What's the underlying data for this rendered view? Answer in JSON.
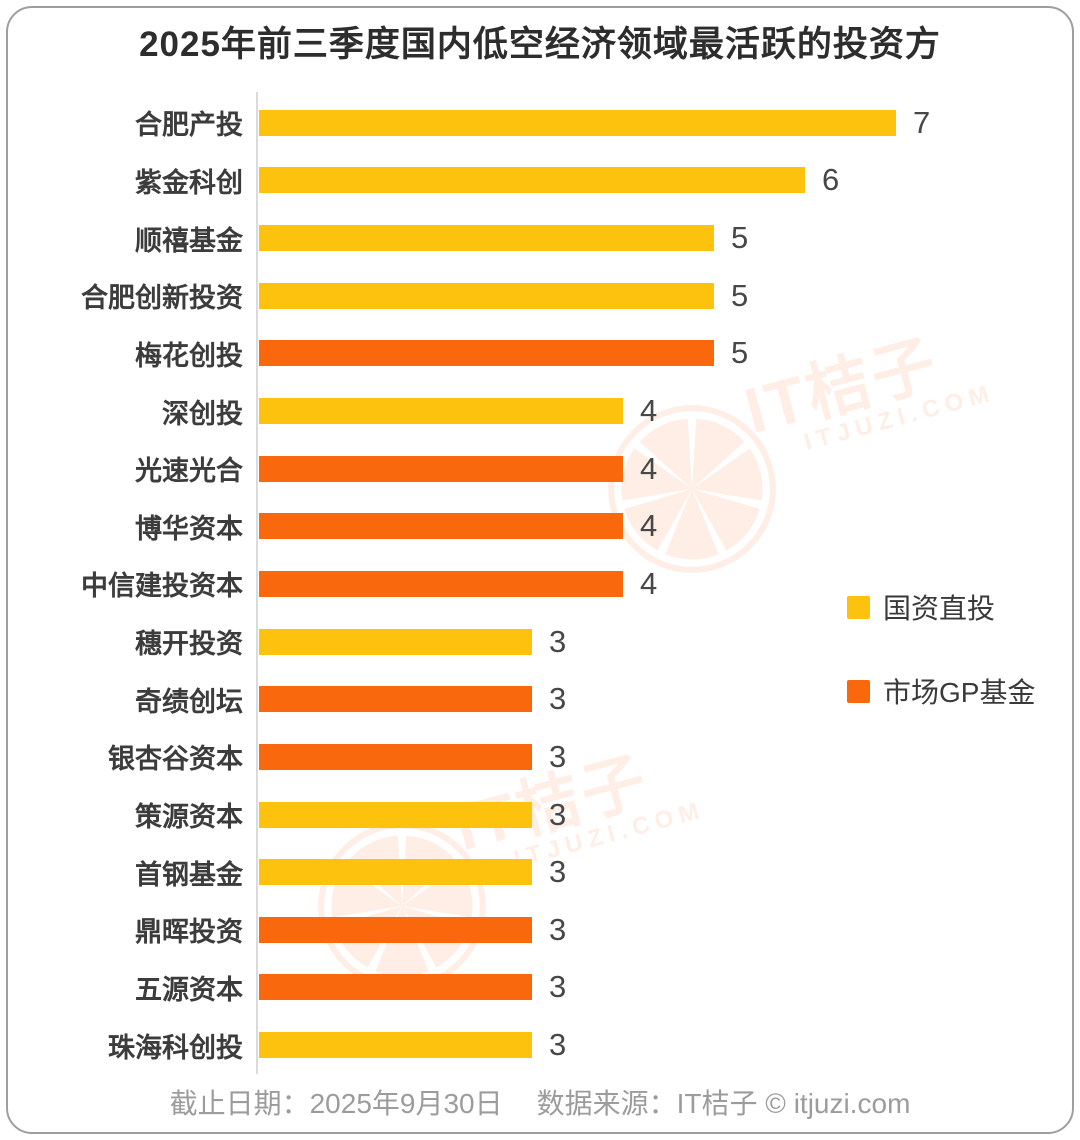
{
  "title_bar": {
    "title": "2025年前三季度国内低空经济领域最活跃的投资方"
  },
  "chart_data": {
    "type": "bar",
    "orientation": "horizontal",
    "title": "2025年前三季度国内低空经济领域最活跃的投资方",
    "categories": [
      "合肥产投",
      "紫金科创",
      "顺禧基金",
      "合肥创新投资",
      "梅花创投",
      "深创投",
      "光速光合",
      "博华资本",
      "中信建投资本",
      "穗开投资",
      "奇绩创坛",
      "银杏谷资本",
      "策源资本",
      "首钢基金",
      "鼎晖投资",
      "五源资本",
      "珠海科创投"
    ],
    "values": [
      7,
      6,
      5,
      5,
      5,
      4,
      4,
      4,
      4,
      3,
      3,
      3,
      3,
      3,
      3,
      3,
      3
    ],
    "series_membership": [
      "国资直投",
      "国资直投",
      "国资直投",
      "国资直投",
      "市场GP基金",
      "国资直投",
      "市场GP基金",
      "市场GP基金",
      "市场GP基金",
      "国资直投",
      "市场GP基金",
      "市场GP基金",
      "国资直投",
      "国资直投",
      "市场GP基金",
      "市场GP基金",
      "国资直投"
    ],
    "xlim": [
      0,
      7.5
    ],
    "value_labels_shown": true,
    "grid": false,
    "legend_position": "right"
  },
  "legend": [
    {
      "label": "国资直投",
      "color": "#FCC20D"
    },
    {
      "label": "市场GP基金",
      "color": "#FA680E"
    }
  ],
  "footer": {
    "deadline": "截止日期：2025年9月30日",
    "source": "数据来源：IT桔子 © itjuzi.com"
  },
  "watermark": {
    "brand": "IT桔子",
    "domain": "ITJUZI.COM",
    "icon": "itjuzi-orange-slice-logo",
    "color": "rgba(250,104,14,0.11)"
  },
  "colors": {
    "bar_yellow": "#FCC20D",
    "bar_orange": "#FA680E",
    "axis_line": "#DBDBDB",
    "title_text": "#2D2D2D",
    "label_text": "#3C3C3C",
    "footer_text": "#9C9C9C",
    "card_border": "#9E9E9E"
  }
}
